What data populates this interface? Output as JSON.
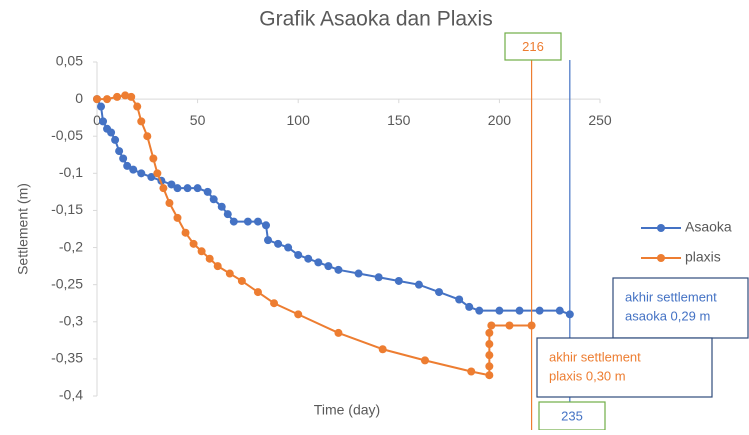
{
  "chart_data": {
    "type": "line",
    "title": "Grafik Asaoka dan Plaxis",
    "xlabel": "Time (day)",
    "ylabel": "Settlement (m)",
    "xlim": [
      0,
      250
    ],
    "xticks": [
      0,
      50,
      100,
      150,
      200,
      250
    ],
    "ylim": [
      -0.4,
      0.05
    ],
    "yticks": [
      {
        "value": 0.05,
        "label": "0,05"
      },
      0,
      {
        "value": -0.05,
        "label": "-0,05"
      },
      {
        "value": -0.1,
        "label": "-0,1"
      },
      {
        "value": -0.15,
        "label": "-0,15"
      },
      {
        "value": -0.2,
        "label": "-0,2"
      },
      {
        "value": -0.25,
        "label": "-0,25"
      },
      {
        "value": -0.3,
        "label": "-0,3"
      },
      {
        "value": -0.35,
        "label": "-0,35"
      },
      {
        "value": -0.4,
        "label": "-0,4"
      }
    ],
    "series": [
      {
        "name": "Asaoka",
        "color": "#4472c4",
        "x": [
          0,
          2,
          3,
          5,
          7,
          9,
          11,
          13,
          15,
          18,
          22,
          27,
          32,
          37,
          40,
          45,
          50,
          55,
          58,
          62,
          65,
          68,
          75,
          80,
          84,
          85,
          90,
          95,
          100,
          105,
          110,
          115,
          120,
          130,
          140,
          150,
          160,
          170,
          180,
          185,
          190,
          200,
          210,
          220,
          230,
          235
        ],
        "values": [
          0,
          -0.01,
          -0.03,
          -0.04,
          -0.045,
          -0.055,
          -0.07,
          -0.08,
          -0.09,
          -0.095,
          -0.1,
          -0.105,
          -0.11,
          -0.115,
          -0.12,
          -0.12,
          -0.12,
          -0.125,
          -0.135,
          -0.145,
          -0.155,
          -0.165,
          -0.165,
          -0.165,
          -0.17,
          -0.19,
          -0.195,
          -0.2,
          -0.21,
          -0.215,
          -0.22,
          -0.225,
          -0.23,
          -0.235,
          -0.24,
          -0.245,
          -0.25,
          -0.26,
          -0.27,
          -0.28,
          -0.285,
          -0.285,
          -0.285,
          -0.285,
          -0.285,
          -0.29
        ]
      },
      {
        "name": "plaxis",
        "color": "#ed7d31",
        "x": [
          0,
          5,
          10,
          14,
          17,
          20,
          22,
          25,
          28,
          30,
          33,
          36,
          40,
          44,
          48,
          52,
          56,
          60,
          66,
          72,
          80,
          88,
          100,
          120,
          142,
          163,
          186,
          195,
          195,
          195,
          195,
          195,
          196,
          205,
          216
        ],
        "values": [
          0,
          0,
          0.003,
          0.005,
          0.003,
          -0.01,
          -0.03,
          -0.05,
          -0.08,
          -0.1,
          -0.12,
          -0.14,
          -0.16,
          -0.18,
          -0.195,
          -0.205,
          -0.215,
          -0.225,
          -0.235,
          -0.245,
          -0.26,
          -0.275,
          -0.29,
          -0.315,
          -0.337,
          -0.352,
          -0.367,
          -0.372,
          -0.36,
          -0.345,
          -0.33,
          -0.315,
          -0.305,
          -0.305,
          -0.305
        ]
      }
    ],
    "vlines": [
      {
        "x": 216,
        "label": "216",
        "color": "#ed7d31"
      },
      {
        "x": 235,
        "label": "235",
        "color": "#4472c4"
      }
    ],
    "notes": [
      {
        "lines": [
          "akhir settlement",
          "asaoka 0,29 m"
        ],
        "color": "#4472c4"
      },
      {
        "lines": [
          "akhir settlement",
          "plaxis 0,30 m"
        ],
        "color": "#ed7d31"
      }
    ]
  }
}
